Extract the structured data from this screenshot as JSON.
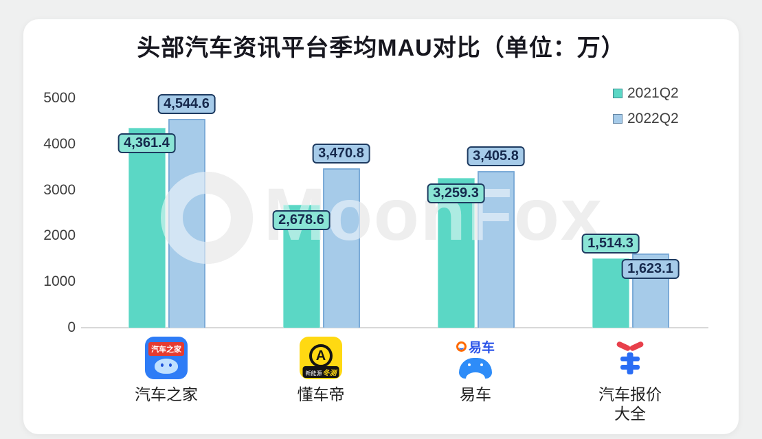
{
  "title": "头部汽车资讯平台季均MAU对比（单位：万）",
  "watermark": {
    "text": "MoonFox",
    "logo": "moonfox-ring-logo"
  },
  "legend": [
    {
      "label": "2021Q2",
      "color": "#5bd7c5"
    },
    {
      "label": "2022Q2",
      "color": "#a6cbe9"
    }
  ],
  "chart_data": {
    "type": "bar",
    "title": "头部汽车资讯平台季均MAU对比（单位：万）",
    "unit": "万",
    "categories": [
      "汽车之家",
      "懂车帝",
      "易车",
      "汽车报价大全"
    ],
    "series": [
      {
        "name": "2021Q2",
        "color": "#5bd7c5",
        "values": [
          4361.4,
          2678.6,
          3259.3,
          1514.3
        ],
        "labels": [
          "4,361.4",
          "2,678.6",
          "3,259.3",
          "1,514.3"
        ]
      },
      {
        "name": "2022Q2",
        "color": "#a6cbe9",
        "values": [
          4544.6,
          3470.8,
          3405.8,
          1623.1
        ],
        "labels": [
          "4,544.6",
          "3,470.8",
          "3,405.8",
          "1,623.1"
        ]
      }
    ],
    "ylim": [
      0,
      5000
    ],
    "yticks": [
      0,
      1000,
      2000,
      3000,
      4000,
      5000
    ],
    "grid": false,
    "legend_position": "top-right",
    "label_placement": [
      [
        "inside",
        "above"
      ],
      [
        "inside",
        "above"
      ],
      [
        "inside",
        "above"
      ],
      [
        "above",
        "inside"
      ]
    ]
  },
  "icons": {
    "autohome": {
      "label": "汽车之家"
    },
    "dongchedi": {
      "letter": "A",
      "badge_prefix": "新能源",
      "badge_suffix": "冬测"
    },
    "yiche": {
      "label": "易车"
    },
    "carprice": {
      "symbol": "¥"
    }
  }
}
